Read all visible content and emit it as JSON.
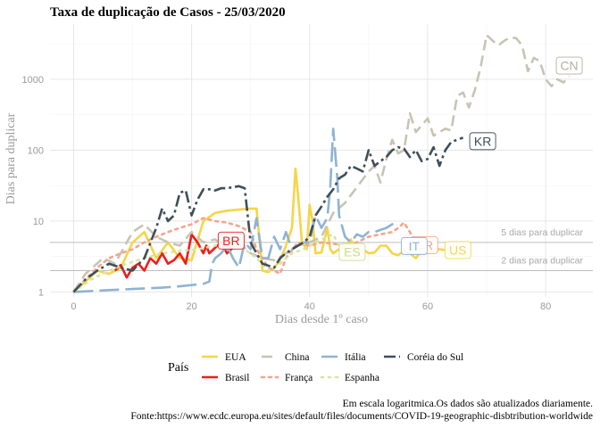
{
  "chart_data": {
    "type": "line",
    "title": "Taxa de duplicação de Casos -  25/03/2020",
    "xlabel": "Dias desde 1º caso",
    "ylabel": "Dias para duplicar",
    "y_scale": "log",
    "xlim": [
      -4,
      88
    ],
    "ylim": [
      0.85,
      6000
    ],
    "x_ticks": [
      0,
      20,
      40,
      60,
      80
    ],
    "x_tick_labels": [
      "0",
      "20",
      "40",
      "60",
      "80"
    ],
    "y_ticks": [
      1,
      10,
      100,
      1000
    ],
    "y_tick_labels": [
      "1",
      "10",
      "100",
      "1000"
    ],
    "grid": true,
    "legend_title": "País",
    "legend_position": "bottom",
    "reference_lines": [
      {
        "y": 5,
        "label": "5 dias para duplicar"
      },
      {
        "y": 2,
        "label": "2 dias para duplicar"
      }
    ],
    "caption": [
      "Em escala logaritmica.Os dados são atualizados diariamente.",
      "Fonte:https://www.ecdc.europa.eu/sites/default/files/documents/COVID-19-geographic-disbtribution-worldwide"
    ],
    "series": [
      {
        "name": "EUA",
        "label": "US",
        "color": "#f5d547",
        "dash": "solid",
        "points": [
          [
            0,
            1
          ],
          [
            2,
            1.4
          ],
          [
            4,
            2
          ],
          [
            6,
            1.8
          ],
          [
            8,
            2.2
          ],
          [
            10,
            5
          ],
          [
            12,
            7
          ],
          [
            14,
            3
          ],
          [
            16,
            5
          ],
          [
            18,
            3
          ],
          [
            20,
            2.8
          ],
          [
            22,
            10
          ],
          [
            24,
            13
          ],
          [
            26,
            14
          ],
          [
            28,
            14.5
          ],
          [
            30,
            15
          ],
          [
            31,
            15
          ],
          [
            32,
            2
          ],
          [
            33,
            1.9
          ],
          [
            34,
            2.2
          ],
          [
            35,
            2.8
          ],
          [
            36,
            4.5
          ],
          [
            37,
            8
          ],
          [
            37.6,
            55
          ],
          [
            38,
            25
          ],
          [
            38.7,
            5
          ],
          [
            39.5,
            4
          ],
          [
            40,
            17
          ],
          [
            40.5,
            10
          ],
          [
            41,
            3.5
          ],
          [
            42,
            3.6
          ],
          [
            43,
            8
          ],
          [
            43.5,
            4
          ],
          [
            44,
            3.5
          ],
          [
            45,
            4
          ],
          [
            46,
            4.5
          ],
          [
            47,
            5.5
          ],
          [
            48,
            3.5
          ],
          [
            49,
            4
          ],
          [
            50,
            3.5
          ],
          [
            51,
            3.6
          ],
          [
            52,
            4.5
          ],
          [
            53,
            4.5
          ],
          [
            54,
            3.5
          ],
          [
            55,
            3.3
          ],
          [
            56,
            3.8
          ],
          [
            57,
            3.5
          ],
          [
            58,
            3
          ],
          [
            59,
            3.8
          ],
          [
            60,
            3.5
          ],
          [
            61,
            3.8
          ],
          [
            62,
            4
          ],
          [
            63,
            3.9
          ]
        ]
      },
      {
        "name": "Brasil",
        "label": "BR",
        "color": "#ee1c1c",
        "dash": "solid",
        "points": [
          [
            7,
            2
          ],
          [
            8,
            2.4
          ],
          [
            9,
            1.6
          ],
          [
            10,
            2.2
          ],
          [
            11,
            2.5
          ],
          [
            12,
            2
          ],
          [
            13,
            3
          ],
          [
            14,
            2.5
          ],
          [
            15,
            3.5
          ],
          [
            16,
            2.5
          ],
          [
            17,
            2.8
          ],
          [
            18,
            3.5
          ],
          [
            19,
            2.5
          ],
          [
            20,
            6.5
          ],
          [
            21,
            5
          ],
          [
            22,
            3.5
          ],
          [
            22.5,
            4.5
          ],
          [
            23,
            3.5
          ],
          [
            24,
            4.2
          ],
          [
            25,
            5
          ],
          [
            26,
            3.5
          ],
          [
            27,
            4.2
          ]
        ]
      },
      {
        "name": "China",
        "label": "CN",
        "color": "#c8c4b5",
        "dash": "12,6",
        "points": [
          [
            0,
            1
          ],
          [
            2,
            1.8
          ],
          [
            5,
            3
          ],
          [
            7,
            2.5
          ],
          [
            10,
            7
          ],
          [
            12,
            9
          ],
          [
            14,
            6
          ],
          [
            16,
            5
          ],
          [
            18,
            4.5
          ],
          [
            20,
            7
          ],
          [
            22,
            5
          ],
          [
            24,
            5.5
          ],
          [
            26,
            4
          ],
          [
            28,
            5
          ],
          [
            30,
            3.5
          ],
          [
            32,
            3
          ],
          [
            34,
            2.8
          ],
          [
            36,
            3.5
          ],
          [
            38,
            4.5
          ],
          [
            40,
            5
          ],
          [
            42,
            6
          ],
          [
            44,
            13
          ],
          [
            46,
            18
          ],
          [
            48,
            30
          ],
          [
            50,
            50
          ],
          [
            51,
            60
          ],
          [
            52,
            35
          ],
          [
            53,
            75
          ],
          [
            54,
            140
          ],
          [
            55,
            90
          ],
          [
            56,
            100
          ],
          [
            57,
            330
          ],
          [
            58,
            180
          ],
          [
            60,
            280
          ],
          [
            61,
            160
          ],
          [
            62,
            180
          ],
          [
            63,
            200
          ],
          [
            64,
            190
          ],
          [
            65,
            580
          ],
          [
            66,
            650
          ],
          [
            67,
            400
          ],
          [
            68,
            700
          ],
          [
            69,
            1500
          ],
          [
            70,
            4200
          ],
          [
            71,
            3500
          ],
          [
            72,
            3000
          ],
          [
            73,
            3500
          ],
          [
            74,
            3900
          ],
          [
            75,
            3800
          ],
          [
            76,
            3000
          ],
          [
            77,
            1300
          ],
          [
            78,
            2000
          ],
          [
            79,
            1800
          ],
          [
            80,
            1000
          ],
          [
            81,
            800
          ],
          [
            82,
            1000
          ],
          [
            83,
            900
          ],
          [
            84,
            1100
          ]
        ]
      },
      {
        "name": "França",
        "label": "FR",
        "color": "#f4a58c",
        "dash": "3,5",
        "points": [
          [
            0,
            1
          ],
          [
            2,
            1.5
          ],
          [
            4,
            2.2
          ],
          [
            6,
            3
          ],
          [
            8,
            3.5
          ],
          [
            10,
            4
          ],
          [
            12,
            5
          ],
          [
            14,
            6
          ],
          [
            16,
            7
          ],
          [
            18,
            8
          ],
          [
            20,
            9
          ],
          [
            22,
            11
          ],
          [
            24,
            10
          ],
          [
            26,
            9.5
          ],
          [
            28,
            8.5
          ],
          [
            30,
            7
          ],
          [
            31,
            4
          ],
          [
            32,
            3
          ],
          [
            33,
            2.2
          ],
          [
            34,
            2
          ],
          [
            35,
            1.8
          ],
          [
            36,
            3
          ],
          [
            38,
            5
          ],
          [
            40,
            4.5
          ],
          [
            42,
            5
          ],
          [
            44,
            4.8
          ],
          [
            46,
            4.5
          ],
          [
            48,
            5
          ],
          [
            50,
            6
          ],
          [
            52,
            6.5
          ],
          [
            54,
            7
          ],
          [
            55,
            8
          ],
          [
            56,
            9.5
          ],
          [
            57,
            7
          ],
          [
            58,
            5
          ]
        ]
      },
      {
        "name": "Espanha",
        "label": "ES",
        "color": "#d6e6a0",
        "dash": "2,6",
        "points": [
          [
            0,
            1
          ],
          [
            3,
            1.5
          ],
          [
            6,
            2
          ],
          [
            9,
            2.5
          ],
          [
            12,
            3
          ],
          [
            15,
            3.5
          ],
          [
            18,
            3.8
          ],
          [
            21,
            4
          ],
          [
            24,
            4.5
          ],
          [
            27,
            5
          ],
          [
            29,
            4
          ],
          [
            31,
            3
          ],
          [
            33,
            2
          ],
          [
            35,
            2.5
          ],
          [
            37,
            3.5
          ],
          [
            39,
            4
          ],
          [
            41,
            5
          ],
          [
            43,
            6
          ],
          [
            44,
            6.5
          ],
          [
            45,
            4.5
          ],
          [
            46,
            4
          ]
        ]
      },
      {
        "name": "Itália",
        "label": "IT",
        "color": "#8fb3d1",
        "dash": "22,7",
        "points": [
          [
            0,
            1
          ],
          [
            5,
            1.05
          ],
          [
            10,
            1.1
          ],
          [
            15,
            1.15
          ],
          [
            18,
            1.2
          ],
          [
            20,
            1.25
          ],
          [
            22,
            1.3
          ],
          [
            23,
            1.4
          ],
          [
            23.5,
            2.5
          ],
          [
            24,
            3
          ],
          [
            25,
            3.5
          ],
          [
            26,
            4.5
          ],
          [
            27,
            3
          ],
          [
            28,
            2.2
          ],
          [
            29,
            5
          ],
          [
            30,
            4
          ],
          [
            31,
            11
          ],
          [
            32,
            3
          ],
          [
            33,
            3
          ],
          [
            34,
            6
          ],
          [
            35,
            4
          ],
          [
            36,
            7
          ],
          [
            37,
            4
          ],
          [
            38,
            4.5
          ],
          [
            39,
            5
          ],
          [
            40,
            5
          ],
          [
            41,
            12
          ],
          [
            42,
            8
          ],
          [
            43,
            11
          ],
          [
            43.5,
            30
          ],
          [
            44,
            200
          ],
          [
            44.3,
            100
          ],
          [
            44.7,
            40
          ],
          [
            45,
            12
          ],
          [
            46,
            6
          ],
          [
            47,
            5
          ],
          [
            48,
            6.5
          ],
          [
            49,
            6
          ],
          [
            50,
            7
          ],
          [
            51,
            7
          ],
          [
            52,
            7.5
          ],
          [
            53,
            8
          ],
          [
            54,
            9
          ],
          [
            55,
            10
          ]
        ]
      },
      {
        "name": "Coréia do Sul",
        "label": "KR",
        "color": "#3e4f59",
        "dash": "13,4,3,4",
        "points": [
          [
            0,
            1
          ],
          [
            2,
            1.5
          ],
          [
            4,
            2
          ],
          [
            6,
            2.5
          ],
          [
            8,
            2.2
          ],
          [
            10,
            2
          ],
          [
            12,
            3
          ],
          [
            14,
            8
          ],
          [
            15,
            15
          ],
          [
            16,
            10
          ],
          [
            17,
            12
          ],
          [
            18,
            25
          ],
          [
            19,
            27
          ],
          [
            20,
            12
          ],
          [
            21,
            20
          ],
          [
            22,
            28
          ],
          [
            23,
            28
          ],
          [
            24,
            27
          ],
          [
            25,
            29
          ],
          [
            26,
            29
          ],
          [
            27,
            30
          ],
          [
            28,
            31
          ],
          [
            29,
            29
          ],
          [
            30,
            5
          ],
          [
            31,
            3.5
          ],
          [
            32,
            2.5
          ],
          [
            34,
            2.2
          ],
          [
            35,
            3
          ],
          [
            36,
            3.5
          ],
          [
            37,
            4
          ],
          [
            38,
            4.5
          ],
          [
            39,
            5
          ],
          [
            40,
            6
          ],
          [
            41,
            12
          ],
          [
            42,
            16
          ],
          [
            43,
            22
          ],
          [
            44,
            28
          ],
          [
            45,
            40
          ],
          [
            46,
            45
          ],
          [
            47,
            60
          ],
          [
            48,
            55
          ],
          [
            49,
            50
          ],
          [
            50,
            100
          ],
          [
            51,
            60
          ],
          [
            52,
            70
          ],
          [
            53,
            80
          ],
          [
            54,
            100
          ],
          [
            55,
            110
          ],
          [
            56,
            105
          ],
          [
            57,
            80
          ],
          [
            58,
            100
          ],
          [
            59,
            70
          ],
          [
            60,
            75
          ],
          [
            61,
            110
          ],
          [
            62,
            60
          ],
          [
            63,
            100
          ],
          [
            64,
            130
          ],
          [
            65,
            140
          ],
          [
            66,
            150
          ]
        ]
      }
    ]
  },
  "legend_order": [
    "EUA",
    "China",
    "Itália",
    "Coréia do Sul",
    "Brasil",
    "França",
    "Espanha"
  ]
}
